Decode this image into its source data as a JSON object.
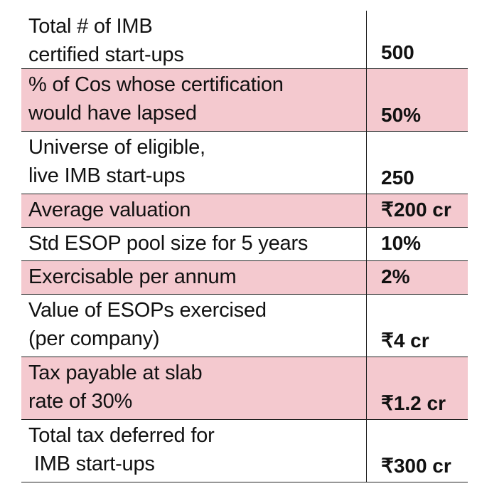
{
  "rows": [
    {
      "label": "Total # of IMB\ncertified start-ups",
      "value": "500",
      "highlight": false
    },
    {
      "label": "% of Cos whose certification\nwould have lapsed",
      "value": "50%",
      "highlight": true
    },
    {
      "label": "Universe of eligible,\nlive IMB start-ups",
      "value": "250",
      "highlight": false
    },
    {
      "label": "Average valuation",
      "value": "₹200 cr",
      "highlight": true
    },
    {
      "label": "Std ESOP pool size for 5 years",
      "value": "10%",
      "highlight": false
    },
    {
      "label": "Exercisable per annum",
      "value": "2%",
      "highlight": true
    },
    {
      "label": "Value of ESOPs exercised\n(per company)",
      "value": "₹4 cr",
      "highlight": false
    },
    {
      "label": "Tax payable at slab\nrate of 30%",
      "value": "₹1.2 cr",
      "highlight": true
    },
    {
      "label": "Total tax deferred for\n IMB start-ups",
      "value": "₹300 cr",
      "highlight": false
    }
  ],
  "colors": {
    "highlight": "#f4c9cf",
    "border": "#222222"
  }
}
